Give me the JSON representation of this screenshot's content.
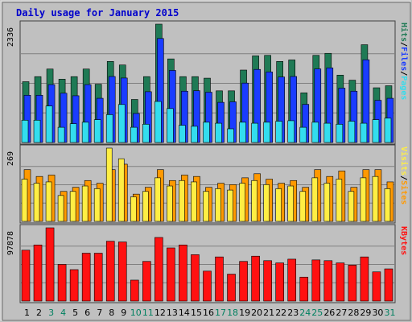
{
  "chart_data": {
    "type": "bar",
    "title": "Daily usage for January 2015",
    "days": [
      "1",
      "2",
      "3",
      "4",
      "5",
      "6",
      "7",
      "8",
      "9",
      "10",
      "11",
      "12",
      "13",
      "14",
      "15",
      "16",
      "17",
      "18",
      "19",
      "20",
      "21",
      "22",
      "23",
      "24",
      "25",
      "26",
      "27",
      "28",
      "29",
      "30",
      "31"
    ],
    "weekend_days": [
      3,
      4,
      10,
      11,
      17,
      18,
      24,
      25,
      31
    ],
    "colors": {
      "background": "#c0c0c0",
      "frame": "#ffffff",
      "title": "#0000cc",
      "day_normal": "#000000",
      "day_weekend": "#008060",
      "hits": "#1f7a55",
      "files": "#1a3cff",
      "pages": "#33ddee",
      "visits": "#ffee44",
      "sites": "#ff9900",
      "kbytes": "#ff1111",
      "grid": "#808080"
    },
    "panels": [
      {
        "id": "hits-files-pages",
        "max_label": "2336",
        "max_value": 2336,
        "legend": [
          {
            "label": "Hits",
            "color": "#1f7a55"
          },
          {
            "label": "/",
            "color": "#000000"
          },
          {
            "label": "Files",
            "color": "#1a3cff"
          },
          {
            "label": "/",
            "color": "#000000"
          },
          {
            "label": "Pages",
            "color": "#33ddee"
          }
        ],
        "series": [
          {
            "name": "Hits",
            "color": "#1f7a55",
            "values": [
              1200,
              1300,
              1450,
              1250,
              1300,
              1450,
              1150,
              1600,
              1530,
              850,
              1300,
              2336,
              1650,
              1300,
              1300,
              1270,
              1020,
              1020,
              1430,
              1710,
              1720,
              1600,
              1630,
              980,
              1720,
              1760,
              1330,
              1230,
              1930,
              1080,
              1120
            ]
          },
          {
            "name": "Files",
            "color": "#1a3cff",
            "values": [
              1060,
              1060,
              1270,
              1100,
              1050,
              1270,
              1000,
              1430,
              1400,
              700,
              1130,
              2180,
              1550,
              1140,
              1150,
              1120,
              920,
              930,
              1300,
              1570,
              1520,
              1420,
              1430,
              880,
              1580,
              1600,
              1200,
              1140,
              1760,
              960,
              1000
            ]
          },
          {
            "name": "Pages",
            "color": "#33ddee",
            "values": [
              440,
              440,
              720,
              300,
              370,
              400,
              450,
              550,
              750,
              300,
              360,
              810,
              670,
              340,
              320,
              400,
              380,
              270,
              400,
              380,
              400,
              420,
              430,
              300,
              400,
              380,
              360,
              420,
              380,
              450,
              480
            ]
          }
        ]
      },
      {
        "id": "visits-sites",
        "max_label": "269",
        "max_value": 269,
        "legend": [
          {
            "label": "Visits",
            "color": "#ffee44"
          },
          {
            "label": "/",
            "color": "#000000"
          },
          {
            "label": "Sites",
            "color": "#ff9900"
          }
        ],
        "series": [
          {
            "name": "Sites",
            "color": "#ff9900",
            "values": [
              190,
              165,
              170,
              110,
              125,
              150,
              140,
              190,
              210,
              100,
              125,
              190,
              150,
              170,
              165,
              125,
              140,
              135,
              160,
              175,
              155,
              140,
              150,
              125,
              190,
              165,
              185,
              125,
              190,
              190,
              145
            ]
          },
          {
            "name": "Visits",
            "color": "#ffee44",
            "values": [
              155,
              140,
              145,
              95,
              110,
              130,
              120,
              269,
              230,
              90,
              110,
              160,
              130,
              150,
              145,
              110,
              120,
              115,
              140,
              150,
              135,
              120,
              130,
              110,
              160,
              140,
              155,
              110,
              160,
              165,
              120
            ]
          }
        ]
      },
      {
        "id": "kbytes",
        "max_label": "97878",
        "max_value": 97878,
        "legend": [
          {
            "label": "KBytes",
            "color": "#ff1111"
          }
        ],
        "series": [
          {
            "name": "KBytes",
            "color": "#ff1111",
            "values": [
              68000,
              75000,
              97878,
              49000,
              42000,
              64000,
              64000,
              80000,
              79000,
              28000,
              53000,
              85000,
              71000,
              75000,
              62000,
              40000,
              59000,
              36000,
              53000,
              60000,
              54000,
              51000,
              56000,
              32000,
              55000,
              54000,
              51000,
              48000,
              59000,
              39000,
              43000
            ]
          }
        ]
      }
    ]
  }
}
